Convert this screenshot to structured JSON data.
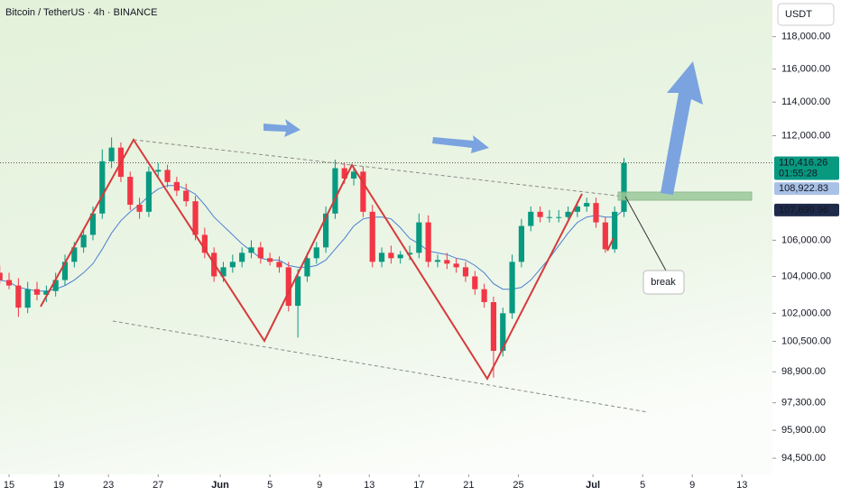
{
  "chart_data": {
    "type": "candlestick",
    "title": "Bitcoin / TetherUS · 4h · BINANCE",
    "y_axis_label": "USDT",
    "log": true,
    "ylim": [
      93700,
      120300
    ],
    "yticks": [
      {
        "value": 118000,
        "label": "118,000.00"
      },
      {
        "value": 116000,
        "label": "116,000.00"
      },
      {
        "value": 114000,
        "label": "114,000.00"
      },
      {
        "value": 112000,
        "label": "112,000.00"
      },
      {
        "value": 106000,
        "label": "106,000.00"
      },
      {
        "value": 104000,
        "label": "104,000.00"
      },
      {
        "value": 102000,
        "label": "102,000.00"
      },
      {
        "value": 100500,
        "label": "100,500.00"
      },
      {
        "value": 98900,
        "label": "98,900.00"
      },
      {
        "value": 97300,
        "label": "97,300.00"
      },
      {
        "value": 95900,
        "label": "95,900.00"
      },
      {
        "value": 94500,
        "label": "94,500.00"
      }
    ],
    "xlim": [
      -0.73,
      61.45
    ],
    "xticks": [
      {
        "value": 0,
        "label": "15"
      },
      {
        "value": 4,
        "label": "19"
      },
      {
        "value": 8,
        "label": "23"
      },
      {
        "value": 12,
        "label": "27"
      },
      {
        "value": 17,
        "label": "Jun"
      },
      {
        "value": 21,
        "label": "5"
      },
      {
        "value": 25,
        "label": "9"
      },
      {
        "value": 29,
        "label": "13"
      },
      {
        "value": 33,
        "label": "17"
      },
      {
        "value": 37,
        "label": "21"
      },
      {
        "value": 41,
        "label": "25"
      },
      {
        "value": 47,
        "label": "Jul"
      },
      {
        "value": 51,
        "label": "5"
      },
      {
        "value": 55,
        "label": "9"
      },
      {
        "value": 59,
        "label": "13"
      }
    ],
    "up_color": "#089981",
    "down_color": "#f23645",
    "x": [
      -0.75,
      0,
      0.75,
      1.5,
      2.25,
      3,
      3.75,
      4.5,
      5.25,
      6,
      6.75,
      7.5,
      8.25,
      9,
      9.75,
      10.5,
      11.25,
      12,
      12.75,
      13.5,
      14.25,
      15,
      15.75,
      16.5,
      17.25,
      18,
      18.75,
      19.5,
      20.25,
      21,
      21.75,
      22.5,
      23.25,
      24,
      24.75,
      25.5,
      26.25,
      27,
      27.75,
      28.5,
      29.25,
      30,
      30.75,
      31.5,
      32.25,
      33,
      33.75,
      34.5,
      35.25,
      36,
      36.75,
      37.5,
      38.25,
      39,
      39.75,
      40.5,
      41.25,
      42,
      42.75,
      43.5,
      44.25,
      45,
      45.75,
      46.5,
      47.25,
      48,
      48.75,
      49.5
    ],
    "open": [
      104200,
      103800,
      103500,
      102300,
      103300,
      103000,
      103200,
      103800,
      104800,
      105600,
      106300,
      107500,
      110500,
      111300,
      109600,
      108000,
      107600,
      109900,
      110000,
      109300,
      108800,
      108200,
      106300,
      105300,
      104000,
      104500,
      104800,
      105300,
      105600,
      105000,
      104800,
      104500,
      102400,
      104000,
      105000,
      105600,
      107500,
      110100,
      109500,
      109900,
      107600,
      104800,
      105300,
      105000,
      105200,
      105300,
      107000,
      104800,
      104900,
      104700,
      104500,
      104000,
      103300,
      102600,
      100000,
      102000,
      104800,
      106800,
      107600,
      107300,
      107300,
      107300,
      107600,
      107900,
      108100,
      107000,
      105500,
      107600
    ],
    "high": [
      104600,
      104200,
      103900,
      103700,
      103700,
      103500,
      104200,
      105200,
      105900,
      106600,
      107900,
      111200,
      111900,
      111600,
      109900,
      108400,
      110200,
      110400,
      110300,
      109600,
      109200,
      108500,
      106700,
      105600,
      104800,
      105200,
      105600,
      106000,
      105900,
      105300,
      105100,
      104800,
      104400,
      105300,
      105900,
      107900,
      110600,
      110400,
      110200,
      110200,
      108000,
      105600,
      105700,
      105400,
      105700,
      107500,
      107400,
      105200,
      105300,
      105000,
      104800,
      104300,
      103600,
      102900,
      102300,
      105200,
      107200,
      107900,
      107900,
      107700,
      107700,
      107900,
      108200,
      108400,
      108400,
      107300,
      107900,
      110700
    ],
    "low": [
      103600,
      103300,
      101800,
      102000,
      102700,
      102600,
      102900,
      103500,
      104500,
      105300,
      106000,
      107200,
      110100,
      109300,
      107700,
      107200,
      107300,
      109600,
      109000,
      108500,
      107900,
      106000,
      105000,
      103700,
      103700,
      104200,
      104500,
      105000,
      104700,
      104600,
      104200,
      102100,
      100700,
      103700,
      104700,
      105300,
      107200,
      109200,
      109100,
      107300,
      104500,
      104500,
      104700,
      104700,
      104900,
      105000,
      104500,
      104500,
      104400,
      104200,
      103700,
      103000,
      102300,
      98600,
      99700,
      101700,
      104500,
      106500,
      107000,
      107000,
      107000,
      107200,
      107300,
      107600,
      106700,
      105300,
      105300,
      107300
    ],
    "close": [
      103800,
      103500,
      102300,
      103300,
      103000,
      103200,
      103800,
      104800,
      105600,
      106300,
      107500,
      110500,
      111300,
      109600,
      108000,
      107600,
      109900,
      110000,
      109300,
      108800,
      108200,
      106300,
      105300,
      104000,
      104500,
      104800,
      105300,
      105600,
      105000,
      104800,
      104500,
      102400,
      104000,
      105000,
      105600,
      107500,
      110100,
      109500,
      109900,
      107600,
      104800,
      105300,
      105000,
      105200,
      105300,
      107000,
      104800,
      104900,
      104700,
      104500,
      104000,
      103300,
      102600,
      100000,
      102000,
      104800,
      106800,
      107600,
      107300,
      107300,
      107300,
      107600,
      107900,
      108100,
      107000,
      105500,
      107600,
      110400
    ],
    "ma_lines": [
      {
        "color": "#4a7fd1",
        "values": [
          103800,
          103700,
          103400,
          103300,
          103200,
          103200,
          103300,
          103500,
          103800,
          104200,
          104700,
          105500,
          106400,
          107100,
          107600,
          108000,
          108500,
          108900,
          109100,
          109100,
          108900,
          108600,
          108000,
          107300,
          106800,
          106300,
          105800,
          105400,
          105000,
          104900,
          104900,
          104600,
          104500,
          104500,
          104600,
          104900,
          105500,
          106100,
          106800,
          107200,
          107300,
          107300,
          107200,
          106700,
          106100,
          105800,
          105400,
          105300,
          105200,
          105000,
          104900,
          104600,
          104200,
          103600,
          103300,
          103300,
          103400,
          103800,
          104400,
          105000,
          105700,
          106400,
          107000,
          107300,
          107400,
          107300,
          107300,
          107700
        ]
      }
    ],
    "last_price_line": 110416.26,
    "price_tags": [
      {
        "value": 110416.26,
        "label": "110,416.26",
        "color": "#089981",
        "text_color": "#ffffff"
      },
      {
        "value": 108922.83,
        "label": "108,922.83",
        "color": "#a9c1e6",
        "text_color": "#2a2e39"
      },
      {
        "value": 107699.96,
        "label": "107,699.96",
        "color": "#1e2a4a",
        "text_color": "#ffffff"
      }
    ],
    "countdown": "01:55:28",
    "annotation": "break"
  }
}
